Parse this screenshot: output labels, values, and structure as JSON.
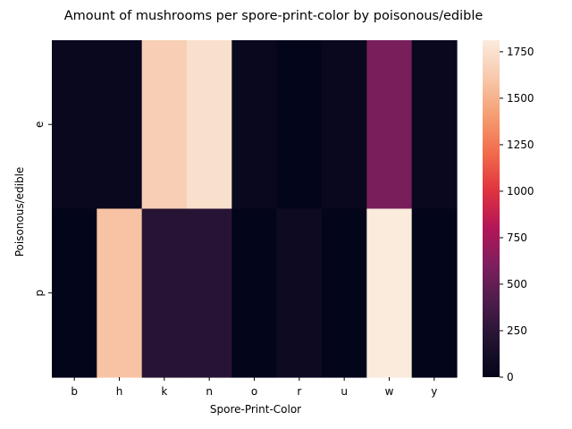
{
  "chart_data": {
    "type": "heatmap",
    "title": "Amount of mushrooms per spore-print-color by poisonous/edible",
    "xlabel": "Spore-Print-Color",
    "ylabel": "Poisonous/edible",
    "x_categories": [
      "b",
      "h",
      "k",
      "n",
      "o",
      "r",
      "u",
      "w",
      "y"
    ],
    "y_categories": [
      "e",
      "p"
    ],
    "values": [
      [
        48,
        48,
        1648,
        1744,
        48,
        0,
        48,
        576,
        48
      ],
      [
        0,
        1584,
        224,
        224,
        0,
        72,
        0,
        1812,
        0
      ]
    ],
    "colorbar": {
      "min": 0,
      "max": 1812,
      "ticks": [
        0,
        250,
        500,
        750,
        1000,
        1250,
        1500,
        1750
      ],
      "colormap": [
        "#03051a",
        "#221331",
        "#4c1d4b",
        "#7e1e5e",
        "#b41658",
        "#e1343e",
        "#f26c4c",
        "#f59e72",
        "#f8c9ac",
        "#faebdd"
      ]
    }
  }
}
